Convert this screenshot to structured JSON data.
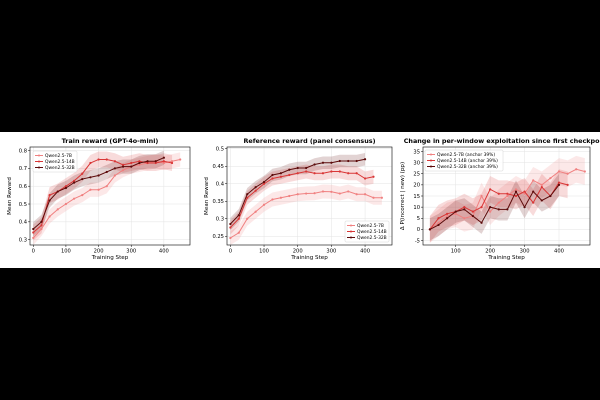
{
  "chart_data": [
    {
      "type": "line",
      "title": "Train reward (GPT-4o-mini)",
      "xlabel": "Training Step",
      "ylabel": "Mean Reward",
      "xlim": [
        -10,
        480
      ],
      "ylim": [
        0.27,
        0.82
      ],
      "xticks": [
        0,
        100,
        200,
        300,
        400
      ],
      "yticks": [
        0.3,
        0.4,
        0.5,
        0.6,
        0.7,
        0.8
      ],
      "grid": true,
      "legend_position": "top-left",
      "series": [
        {
          "name": "Qwen2.5-7B",
          "color": "#f08080",
          "x": [
            0,
            25,
            50,
            75,
            100,
            125,
            150,
            175,
            200,
            225,
            250,
            275,
            300,
            325,
            350,
            375,
            400,
            425,
            450
          ],
          "y": [
            0.31,
            0.36,
            0.43,
            0.47,
            0.5,
            0.53,
            0.55,
            0.58,
            0.58,
            0.6,
            0.66,
            0.69,
            0.71,
            0.72,
            0.73,
            0.74,
            0.73,
            0.74,
            0.75
          ],
          "band": 0.04
        },
        {
          "name": "Qwen2.5-14B",
          "color": "#d93636",
          "x": [
            0,
            25,
            50,
            75,
            100,
            125,
            150,
            175,
            200,
            225,
            250,
            275,
            300,
            325,
            350,
            375,
            400,
            425
          ],
          "y": [
            0.34,
            0.38,
            0.55,
            0.57,
            0.6,
            0.63,
            0.67,
            0.73,
            0.75,
            0.75,
            0.74,
            0.72,
            0.73,
            0.74,
            0.73,
            0.73,
            0.74,
            0.73
          ],
          "band": 0.045
        },
        {
          "name": "Qwen2.5-32B",
          "color": "#5c0a0a",
          "x": [
            0,
            25,
            50,
            75,
            100,
            125,
            150,
            175,
            200,
            225,
            250,
            275,
            300,
            325,
            350,
            375,
            400
          ],
          "y": [
            0.36,
            0.4,
            0.52,
            0.57,
            0.59,
            0.62,
            0.64,
            0.65,
            0.66,
            0.68,
            0.7,
            0.71,
            0.71,
            0.73,
            0.74,
            0.74,
            0.76
          ],
          "band": 0.04
        }
      ]
    },
    {
      "type": "line",
      "title": "Reference reward (panel consensus)",
      "xlabel": "Training Step",
      "ylabel": "Mean Reward",
      "xlim": [
        -10,
        480
      ],
      "ylim": [
        0.225,
        0.505
      ],
      "xticks": [
        0,
        100,
        200,
        300,
        400
      ],
      "yticks": [
        0.25,
        0.3,
        0.35,
        0.4,
        0.45,
        0.5
      ],
      "grid": true,
      "legend_position": "bottom-right",
      "series": [
        {
          "name": "Qwen2.5-7B",
          "color": "#f08080",
          "x": [
            0,
            25,
            50,
            75,
            100,
            125,
            150,
            175,
            200,
            225,
            250,
            275,
            300,
            325,
            350,
            375,
            400,
            425,
            450
          ],
          "y": [
            0.245,
            0.26,
            0.3,
            0.32,
            0.34,
            0.355,
            0.36,
            0.365,
            0.37,
            0.372,
            0.373,
            0.378,
            0.377,
            0.372,
            0.378,
            0.37,
            0.37,
            0.36,
            0.36
          ],
          "band": 0.02
        },
        {
          "name": "Qwen2.5-14B",
          "color": "#d93636",
          "x": [
            0,
            25,
            50,
            75,
            100,
            125,
            150,
            175,
            200,
            225,
            250,
            275,
            300,
            325,
            350,
            375,
            400,
            425
          ],
          "y": [
            0.275,
            0.3,
            0.36,
            0.38,
            0.4,
            0.415,
            0.42,
            0.425,
            0.43,
            0.435,
            0.43,
            0.43,
            0.435,
            0.435,
            0.43,
            0.43,
            0.415,
            0.42
          ],
          "band": 0.02
        },
        {
          "name": "Qwen2.5-32B",
          "color": "#5c0a0a",
          "x": [
            0,
            25,
            50,
            75,
            100,
            125,
            150,
            175,
            200,
            225,
            250,
            275,
            300,
            325,
            350,
            375,
            400
          ],
          "y": [
            0.285,
            0.31,
            0.37,
            0.39,
            0.405,
            0.425,
            0.43,
            0.44,
            0.445,
            0.445,
            0.455,
            0.46,
            0.46,
            0.465,
            0.465,
            0.465,
            0.47
          ],
          "band": 0.018
        }
      ]
    },
    {
      "type": "line",
      "title": "Change in per-window exploitation since first checkpoint",
      "xlabel": "Training Step",
      "ylabel": "Δ P(incorrect | new) (pp)",
      "xlim": [
        5,
        490
      ],
      "ylim": [
        -7,
        37
      ],
      "xticks": [
        100,
        200,
        300,
        400
      ],
      "yticks": [
        -5,
        0,
        5,
        10,
        15,
        20,
        25,
        30,
        35
      ],
      "grid": true,
      "legend_position": "top-left",
      "series": [
        {
          "name": "Qwen2.5-7B (anchor 39%)",
          "color": "#f08080",
          "x": [
            25,
            50,
            75,
            100,
            125,
            150,
            175,
            200,
            225,
            250,
            275,
            300,
            325,
            350,
            375,
            400,
            425,
            450,
            475
          ],
          "y": [
            0,
            3,
            6,
            7,
            5,
            6,
            15,
            8,
            12,
            15,
            18,
            16,
            22,
            20,
            23,
            26,
            25,
            27,
            26
          ],
          "band": 6
        },
        {
          "name": "Qwen2.5-14B (anchor 39%)",
          "color": "#d93636",
          "x": [
            25,
            50,
            75,
            100,
            125,
            150,
            175,
            200,
            225,
            250,
            275,
            300,
            325,
            350,
            375,
            400,
            425
          ],
          "y": [
            0,
            5,
            7,
            8,
            10,
            8,
            10,
            18,
            16,
            16,
            15,
            17,
            12,
            19,
            15,
            21,
            20
          ],
          "band": 6
        },
        {
          "name": "Qwen2.5-32B (anchor 39%)",
          "color": "#5c0a0a",
          "x": [
            25,
            50,
            75,
            100,
            125,
            150,
            175,
            200,
            225,
            250,
            275,
            300,
            325,
            350,
            375,
            400
          ],
          "y": [
            0,
            2,
            5,
            8,
            9,
            6,
            3,
            10,
            9,
            9,
            17,
            10,
            17,
            13,
            15,
            20
          ],
          "band": 5
        }
      ]
    }
  ]
}
